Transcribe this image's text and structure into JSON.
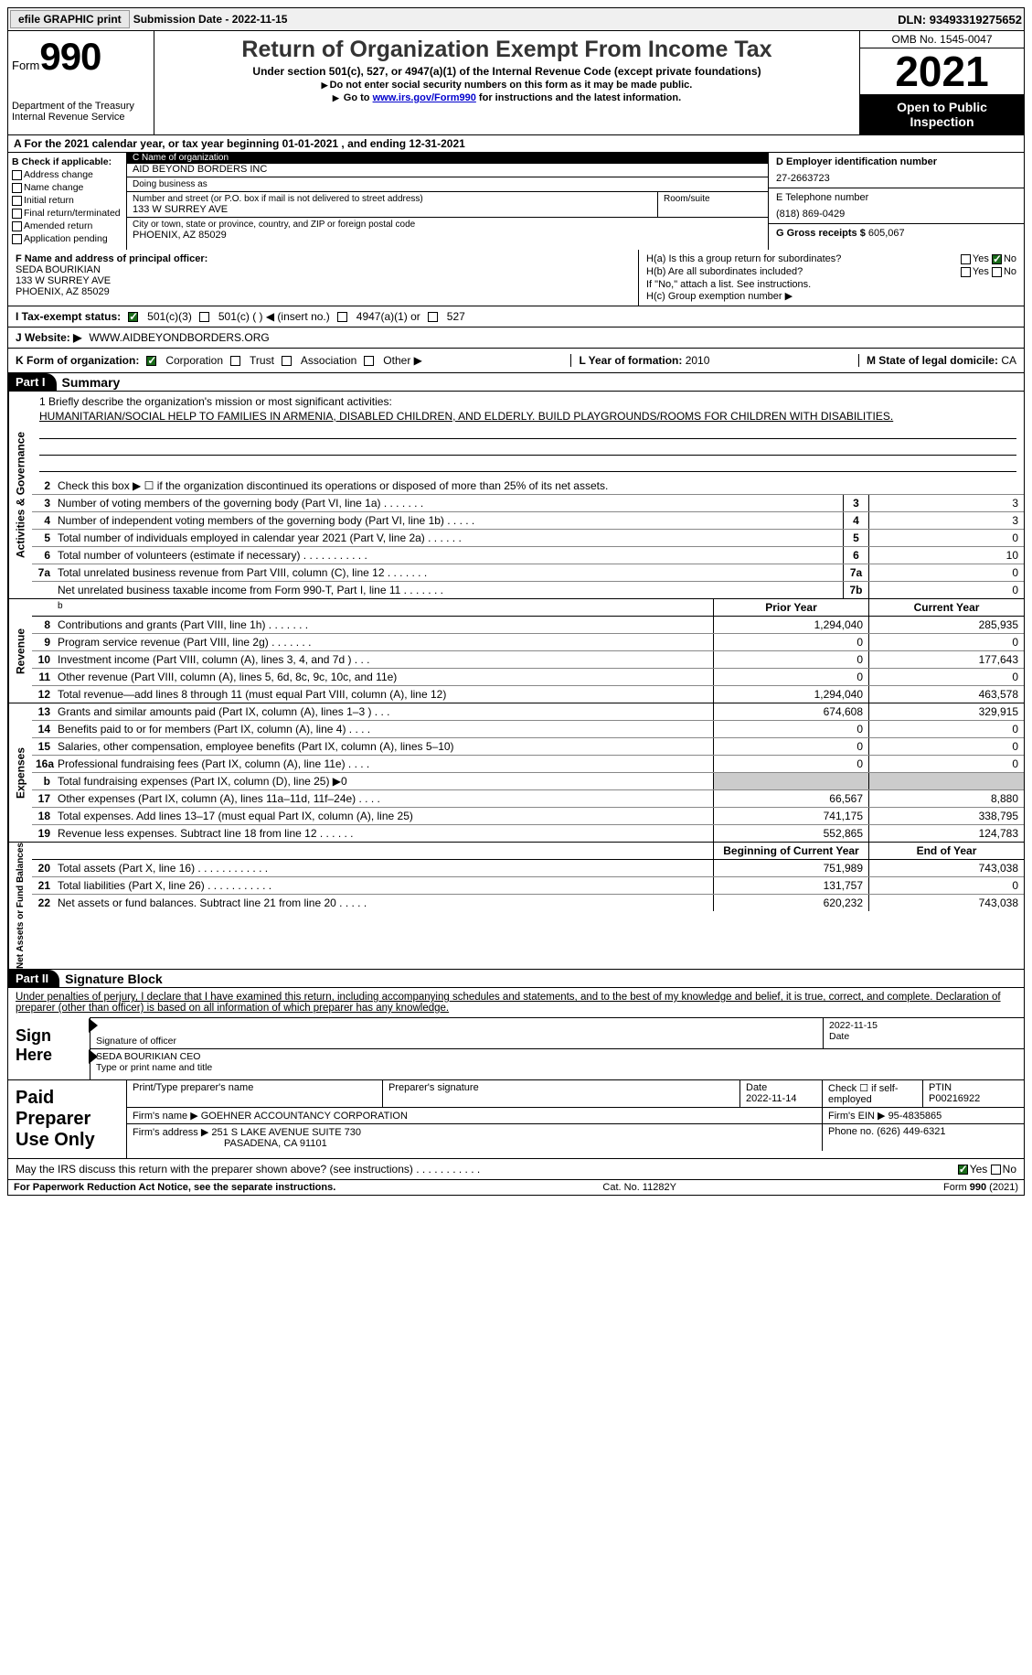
{
  "topbar": {
    "efile_btn": "efile GRAPHIC print",
    "subdate_lbl": "Submission Date - ",
    "subdate": "2022-11-15",
    "dln_lbl": "DLN: ",
    "dln": "93493319275652"
  },
  "header": {
    "form_word": "Form",
    "form_num": "990",
    "dept": "Department of the Treasury\nInternal Revenue Service",
    "title": "Return of Organization Exempt From Income Tax",
    "subtitle": "Under section 501(c), 527, or 4947(a)(1) of the Internal Revenue Code (except private foundations)",
    "note1": "Do not enter social security numbers on this form as it may be made public.",
    "note2_pre": "Go to ",
    "note2_link": "www.irs.gov/Form990",
    "note2_post": " for instructions and the latest information.",
    "omb": "OMB No. 1545-0047",
    "year": "2021",
    "otp": "Open to Public Inspection"
  },
  "row_a": {
    "label": "A For the 2021 calendar year, or tax year beginning ",
    "begin": "01-01-2021",
    "mid": " , and ending ",
    "end": "12-31-2021"
  },
  "b": {
    "hdr": "B Check if applicable:",
    "items": [
      "Address change",
      "Name change",
      "Initial return",
      "Final return/terminated",
      "Amended return",
      "Application pending"
    ]
  },
  "c": {
    "name_lbl": "C Name of organization",
    "name": "AID BEYOND BORDERS INC",
    "dba_lbl": "Doing business as",
    "dba": "",
    "addr_lbl": "Number and street (or P.O. box if mail is not delivered to street address)",
    "room_lbl": "Room/suite",
    "addr": "133 W SURREY AVE",
    "city_lbl": "City or town, state or province, country, and ZIP or foreign postal code",
    "city": "PHOENIX, AZ  85029"
  },
  "d": {
    "ein_lbl": "D Employer identification number",
    "ein": "27-2663723",
    "tel_lbl": "E Telephone number",
    "tel": "(818) 869-0429",
    "gross_lbl": "G Gross receipts $ ",
    "gross": "605,067"
  },
  "f": {
    "lbl": "F  Name and address of principal officer:",
    "name": "SEDA BOURIKIAN",
    "addr1": "133 W SURREY AVE",
    "addr2": "PHOENIX, AZ  85029"
  },
  "h": {
    "a_lbl": "H(a)  Is this a group return for subordinates?",
    "b_lbl": "H(b)  Are all subordinates included?",
    "b_note": "If \"No,\" attach a list. See instructions.",
    "c_lbl": "H(c)  Group exemption number ▶",
    "yes": "Yes",
    "no": "No"
  },
  "i": {
    "lbl": "I   Tax-exempt status:",
    "opts": [
      "501(c)(3)",
      "501(c) (  ) ◀ (insert no.)",
      "4947(a)(1) or",
      "527"
    ]
  },
  "j": {
    "lbl": "J   Website: ▶",
    "val": "WWW.AIDBEYONDBORDERS.ORG"
  },
  "k": {
    "lbl": "K Form of organization:",
    "opts": [
      "Corporation",
      "Trust",
      "Association",
      "Other ▶"
    ],
    "l_lbl": "L Year of formation: ",
    "l_val": "2010",
    "m_lbl": "M State of legal domicile: ",
    "m_val": "CA"
  },
  "part1": {
    "bar": "Part I",
    "title": "Summary"
  },
  "sections": {
    "ag": "Activities & Governance",
    "rev": "Revenue",
    "exp": "Expenses",
    "na": "Net Assets or Fund Balances"
  },
  "mission": {
    "lbl": "1   Briefly describe the organization's mission or most significant activities:",
    "text": "HUMANITARIAN/SOCIAL HELP TO FAMILIES IN ARMENIA, DISABLED CHILDREN, AND ELDERLY. BUILD PLAYGROUNDS/ROOMS FOR CHILDREN WITH DISABILITIES."
  },
  "line2": "Check this box ▶ ☐  if the organization discontinued its operations or disposed of more than 25% of its net assets.",
  "ag_lines": [
    {
      "n": "3",
      "t": "Number of voting members of the governing body (Part VI, line 1a)   .     .     .     .     .     .     .",
      "b": "3",
      "v": "3"
    },
    {
      "n": "4",
      "t": "Number of independent voting members of the governing body (Part VI, line 1b)   .     .     .     .     .",
      "b": "4",
      "v": "3"
    },
    {
      "n": "5",
      "t": "Total number of individuals employed in calendar year 2021 (Part V, line 2a)   .     .     .     .     .     .",
      "b": "5",
      "v": "0"
    },
    {
      "n": "6",
      "t": "Total number of volunteers (estimate if necessary)    .     .     .     .     .     .     .     .     .     .     .",
      "b": "6",
      "v": "10"
    },
    {
      "n": "7a",
      "t": "Total unrelated business revenue from Part VIII, column (C), line 12   .     .     .     .     .     .     .",
      "b": "7a",
      "v": "0"
    },
    {
      "n": "",
      "t": "Net unrelated business taxable income from Form 990-T, Part I, line 11   .     .     .     .     .     .     .",
      "b": "7b",
      "v": "0"
    }
  ],
  "colhdr": {
    "prior": "Prior Year",
    "current": "Current Year"
  },
  "rev_lines": [
    {
      "n": "8",
      "t": "Contributions and grants (Part VIII, line 1h)   .     .     .     .     .     .     .",
      "p": "1,294,040",
      "c": "285,935"
    },
    {
      "n": "9",
      "t": "Program service revenue (Part VIII, line 2g)   .     .     .     .     .     .     .",
      "p": "0",
      "c": "0"
    },
    {
      "n": "10",
      "t": "Investment income (Part VIII, column (A), lines 3, 4, and 7d )   .     .     .",
      "p": "0",
      "c": "177,643"
    },
    {
      "n": "11",
      "t": "Other revenue (Part VIII, column (A), lines 5, 6d, 8c, 9c, 10c, and 11e)",
      "p": "0",
      "c": "0"
    },
    {
      "n": "12",
      "t": "Total revenue—add lines 8 through 11 (must equal Part VIII, column (A), line 12)",
      "p": "1,294,040",
      "c": "463,578"
    }
  ],
  "exp_lines": [
    {
      "n": "13",
      "t": "Grants and similar amounts paid (Part IX, column (A), lines 1–3 )   .     .     .",
      "p": "674,608",
      "c": "329,915"
    },
    {
      "n": "14",
      "t": "Benefits paid to or for members (Part IX, column (A), line 4)   .     .     .     .",
      "p": "0",
      "c": "0"
    },
    {
      "n": "15",
      "t": "Salaries, other compensation, employee benefits (Part IX, column (A), lines 5–10)",
      "p": "0",
      "c": "0"
    },
    {
      "n": "16a",
      "t": "Professional fundraising fees (Part IX, column (A), line 11e)   .     .     .     .",
      "p": "0",
      "c": "0"
    },
    {
      "n": "b",
      "t": "Total fundraising expenses (Part IX, column (D), line 25) ▶0",
      "p": "grey",
      "c": "grey"
    },
    {
      "n": "17",
      "t": "Other expenses (Part IX, column (A), lines 11a–11d, 11f–24e)   .     .     .     .",
      "p": "66,567",
      "c": "8,880"
    },
    {
      "n": "18",
      "t": "Total expenses. Add lines 13–17 (must equal Part IX, column (A), line 25)",
      "p": "741,175",
      "c": "338,795"
    },
    {
      "n": "19",
      "t": "Revenue less expenses. Subtract line 18 from line 12   .     .     .     .     .     .",
      "p": "552,865",
      "c": "124,783"
    }
  ],
  "na_hdr": {
    "begin": "Beginning of Current Year",
    "end": "End of Year"
  },
  "na_lines": [
    {
      "n": "20",
      "t": "Total assets (Part X, line 16)   .     .     .     .     .     .     .     .     .     .     .     .",
      "p": "751,989",
      "c": "743,038"
    },
    {
      "n": "21",
      "t": "Total liabilities (Part X, line 26)   .     .     .     .     .     .     .     .     .     .     .",
      "p": "131,757",
      "c": "0"
    },
    {
      "n": "22",
      "t": "Net assets or fund balances. Subtract line 21 from line 20   .     .     .     .     .",
      "p": "620,232",
      "c": "743,038"
    }
  ],
  "part2": {
    "bar": "Part II",
    "title": "Signature Block"
  },
  "sig": {
    "decl": "Under penalties of perjury, I declare that I have examined this return, including accompanying schedules and statements, and to the best of my knowledge and belief, it is true, correct, and complete. Declaration of preparer (other than officer) is based on all information of which preparer has any knowledge.",
    "sign_here": "Sign Here",
    "sig_off": "Signature of officer",
    "date": "Date",
    "sig_date": "2022-11-15",
    "name_title": "SEDA BOURIKIAN  CEO",
    "name_lbl": "Type or print name and title"
  },
  "prep": {
    "lbl": "Paid Preparer Use Only",
    "h1": "Print/Type preparer's name",
    "h2": "Preparer's signature",
    "h3_lbl": "Date",
    "h3": "2022-11-14",
    "h4": "Check ☐ if self-employed",
    "h5_lbl": "PTIN",
    "h5": "P00216922",
    "firm_lbl": "Firm's name    ▶",
    "firm": "GOEHNER ACCOUNTANCY CORPORATION",
    "ein_lbl": "Firm's EIN ▶ ",
    "ein": "95-4835865",
    "addr_lbl": "Firm's address ▶",
    "addr1": "251 S LAKE AVENUE SUITE 730",
    "addr2": "PASADENA, CA  91101",
    "ph_lbl": "Phone no. ",
    "ph": "(626) 449-6321"
  },
  "discuss": {
    "txt": "May the IRS discuss this return with the preparer shown above? (see instructions)   .     .     .     .     .     .     .     .     .     .     .",
    "yes": "Yes",
    "no": "No"
  },
  "footer": {
    "left": "For Paperwork Reduction Act Notice, see the separate instructions.",
    "mid": "Cat. No. 11282Y",
    "right": "Form 990 (2021)"
  }
}
